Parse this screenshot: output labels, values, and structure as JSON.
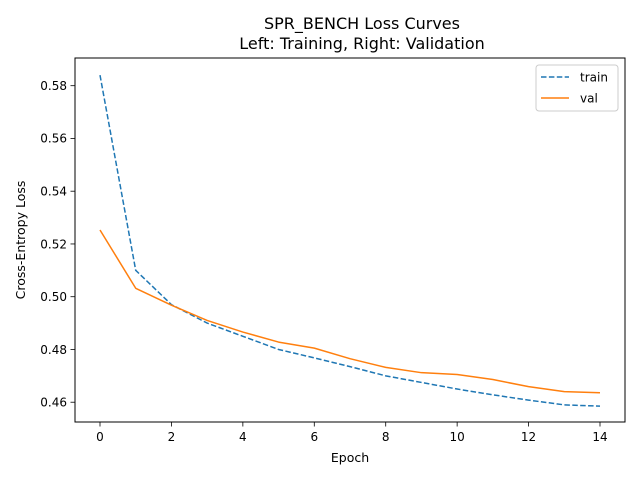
{
  "chart_data": {
    "type": "line",
    "title": "SPR_BENCH Loss Curves",
    "subtitle": "Left: Training, Right: Validation",
    "xlabel": "Epoch",
    "ylabel": "Cross-Entropy Loss",
    "xlim": [
      -0.7,
      14.7
    ],
    "ylim": [
      0.4525,
      0.5905
    ],
    "x_ticks": [
      0,
      2,
      4,
      6,
      8,
      10,
      12,
      14
    ],
    "x_tick_labels": [
      "0",
      "2",
      "4",
      "6",
      "8",
      "10",
      "12",
      "14"
    ],
    "y_ticks": [
      0.46,
      0.48,
      0.5,
      0.52,
      0.54,
      0.56,
      0.58
    ],
    "y_tick_labels": [
      "0.46",
      "0.48",
      "0.50",
      "0.52",
      "0.54",
      "0.56",
      "0.58"
    ],
    "grid": false,
    "legend_position": "top-right",
    "x": [
      0,
      1,
      2,
      3,
      4,
      5,
      6,
      7,
      8,
      9,
      10,
      11,
      12,
      13,
      14
    ],
    "series": [
      {
        "name": "train",
        "color": "#1f77b4",
        "dash": "dashed",
        "values": [
          0.584,
          0.51,
          0.497,
          0.49,
          0.485,
          0.48,
          0.4768,
          0.4735,
          0.47,
          0.4675,
          0.465,
          0.4628,
          0.4608,
          0.459,
          0.4585
        ]
      },
      {
        "name": "val",
        "color": "#ff7f0e",
        "dash": "solid",
        "values": [
          0.5253,
          0.5032,
          0.4968,
          0.491,
          0.4866,
          0.4828,
          0.4805,
          0.4765,
          0.4732,
          0.4712,
          0.4705,
          0.4686,
          0.4659,
          0.464,
          0.4636
        ]
      }
    ]
  }
}
